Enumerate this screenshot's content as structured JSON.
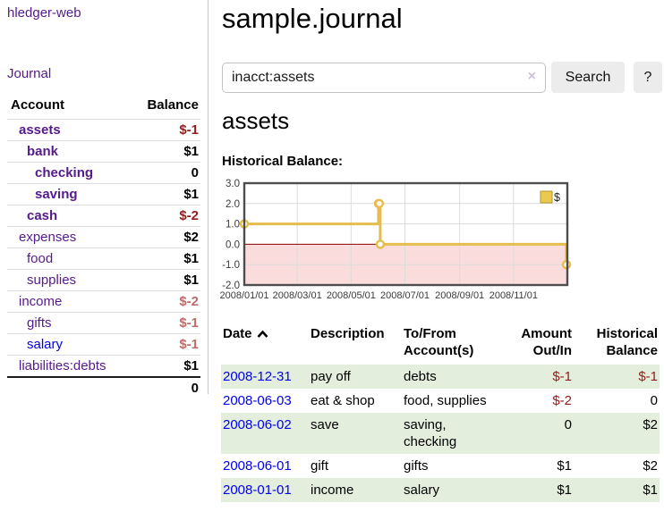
{
  "colors": {
    "accent_purple": "#551a8b",
    "link_blue": "#0000ee",
    "negative_strong": "#8f1d1d",
    "negative_soft": "#bd6b6b",
    "row_stripe_green": "#e4eedd",
    "chart_gold": "#e6bd4d",
    "chart_negative_fill": "#fadcdc",
    "chart_zero_line": "#8b0000"
  },
  "sidebar": {
    "app_title": "hledger-web",
    "journal_link": "Journal",
    "account_header": "Account",
    "balance_header": "Balance",
    "accounts": [
      {
        "label": "assets",
        "indent": 1,
        "bold": true,
        "link_color": "purple",
        "balance": "$-1",
        "balance_class": "neg"
      },
      {
        "label": "bank",
        "indent": 2,
        "bold": true,
        "link_color": "purple",
        "balance": "$1",
        "balance_class": ""
      },
      {
        "label": "checking",
        "indent": 3,
        "bold": true,
        "link_color": "purple",
        "balance": "0",
        "balance_class": ""
      },
      {
        "label": "saving",
        "indent": 3,
        "bold": true,
        "link_color": "purple",
        "balance": "$1",
        "balance_class": ""
      },
      {
        "label": "cash",
        "indent": 2,
        "bold": true,
        "link_color": "purple",
        "balance": "$-2",
        "balance_class": "neg"
      },
      {
        "label": "expenses",
        "indent": 1,
        "bold": false,
        "link_color": "purple",
        "balance": "$2",
        "balance_class": ""
      },
      {
        "label": "food",
        "indent": 2,
        "bold": false,
        "link_color": "purple",
        "balance": "$1",
        "balance_class": ""
      },
      {
        "label": "supplies",
        "indent": 2,
        "bold": false,
        "link_color": "purple",
        "balance": "$1",
        "balance_class": ""
      },
      {
        "label": "income",
        "indent": 1,
        "bold": false,
        "link_color": "purple",
        "balance": "$-2",
        "balance_class": "neg-soft"
      },
      {
        "label": "gifts",
        "indent": 2,
        "bold": false,
        "link_color": "purple",
        "balance": "$-1",
        "balance_class": "neg-soft"
      },
      {
        "label": "salary",
        "indent": 2,
        "bold": false,
        "link_color": "blue",
        "balance": "$-1",
        "balance_class": "neg-soft"
      },
      {
        "label": "liabilities:debts",
        "indent": 1,
        "bold": false,
        "link_color": "purple",
        "balance": "$1",
        "balance_class": ""
      }
    ],
    "total": "0"
  },
  "main": {
    "title": "sample.journal",
    "search": {
      "value": "inacct:assets",
      "clear_icon": "×",
      "search_button": "Search",
      "help_button": "?"
    },
    "account_title": "assets",
    "chart_title": "Historical Balance:"
  },
  "chart_data": {
    "type": "line",
    "step": true,
    "title": "Historical Balance:",
    "series": [
      {
        "name": "$",
        "color": "#e6bd4d",
        "points": [
          [
            "2008-01-01",
            1
          ],
          [
            "2008-06-01",
            2
          ],
          [
            "2008-06-02",
            2
          ],
          [
            "2008-06-03",
            0
          ],
          [
            "2008-12-31",
            -1
          ]
        ]
      }
    ],
    "x_range": [
      "2008-01-01",
      "2009-01-01"
    ],
    "x_ticks": [
      {
        "date": "2008-01-01",
        "label": "2008/01/01"
      },
      {
        "date": "2008-03-01",
        "label": "2008/03/01"
      },
      {
        "date": "2008-05-01",
        "label": "2008/05/01"
      },
      {
        "date": "2008-07-01",
        "label": "2008/07/01"
      },
      {
        "date": "2008-09-01",
        "label": "2008/09/01"
      },
      {
        "date": "2008-11-01",
        "label": "2008/11/01"
      }
    ],
    "y_ticks": [
      3.0,
      2.0,
      1.0,
      0.0,
      -1.0,
      -2.0
    ],
    "ylim": [
      -2,
      3
    ],
    "grid": true,
    "legend": {
      "label": "$",
      "position": "top-right"
    },
    "negative_fill": "#fadcdc",
    "zero_line": "#8b0000"
  },
  "register": {
    "headers": {
      "date": "Date",
      "description": "Description",
      "accounts": "To/From Account(s)",
      "amount": "Amount Out/In",
      "balance": "Historical Balance"
    },
    "sort": {
      "column": "date",
      "direction": "ascending"
    },
    "rows": [
      {
        "date": "2008-12-31",
        "description": "pay off",
        "accounts": "debts",
        "amount": "$-1",
        "amount_class": "neg",
        "balance": "$-1",
        "balance_class": "neg"
      },
      {
        "date": "2008-06-03",
        "description": "eat & shop",
        "accounts": "food, supplies",
        "amount": "$-2",
        "amount_class": "neg",
        "balance": "0",
        "balance_class": ""
      },
      {
        "date": "2008-06-02",
        "description": "save",
        "accounts": "saving, checking",
        "amount": "0",
        "amount_class": "",
        "balance": "$2",
        "balance_class": ""
      },
      {
        "date": "2008-06-01",
        "description": "gift",
        "accounts": "gifts",
        "amount": "$1",
        "amount_class": "",
        "balance": "$2",
        "balance_class": ""
      },
      {
        "date": "2008-01-01",
        "description": "income",
        "accounts": "salary",
        "amount": "$1",
        "amount_class": "",
        "balance": "$1",
        "balance_class": ""
      }
    ]
  }
}
